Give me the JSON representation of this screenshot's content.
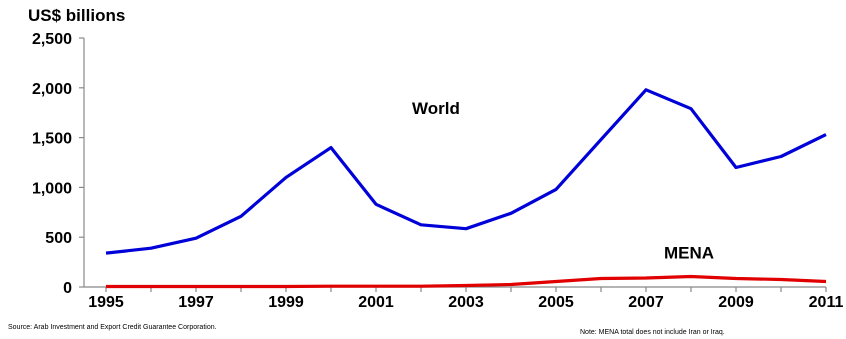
{
  "chart_data": {
    "type": "line",
    "ylabel": "US$ billions",
    "ylim": [
      0,
      2500
    ],
    "yticks": [
      "0",
      "500",
      "1,000",
      "1,500",
      "2,000",
      "2,500"
    ],
    "ytick_values": [
      0,
      500,
      1000,
      1500,
      2000,
      2500
    ],
    "x": [
      1995,
      1996,
      1997,
      1998,
      1999,
      2000,
      2001,
      2002,
      2003,
      2004,
      2005,
      2006,
      2007,
      2008,
      2009,
      2010,
      2011
    ],
    "xticks": [
      "1995",
      "1997",
      "1999",
      "2001",
      "2003",
      "2005",
      "2007",
      "2009",
      "2011"
    ],
    "xtick_values": [
      1995,
      1997,
      1999,
      2001,
      2003,
      2005,
      2007,
      2009,
      2011
    ],
    "series": [
      {
        "name": "World",
        "color": "#0000d8",
        "values": [
          340,
          390,
          490,
          710,
          1100,
          1400,
          830,
          625,
          585,
          740,
          980,
          1480,
          1980,
          1790,
          1200,
          1310,
          1530
        ]
      },
      {
        "name": "MENA",
        "color": "#e00000",
        "values": [
          5,
          5,
          5,
          5,
          5,
          8,
          8,
          8,
          15,
          25,
          55,
          85,
          90,
          105,
          85,
          75,
          55
        ]
      }
    ],
    "grid": false,
    "legend": "inline labels"
  },
  "footer": {
    "source": "Source: Arab Investment and Export Credit Guarantee Corporation.",
    "note": "Note: MENA total does not include Iran or Iraq."
  }
}
